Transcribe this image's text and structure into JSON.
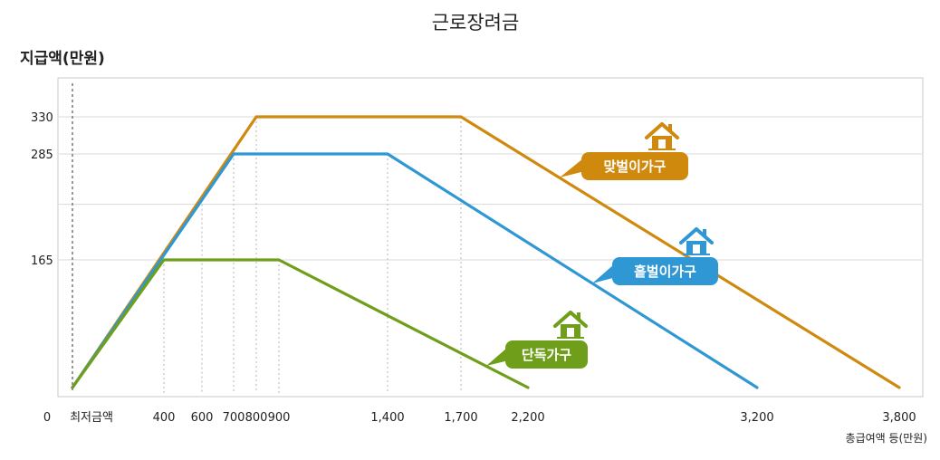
{
  "chart_data": {
    "type": "line",
    "title": "근로장려금",
    "ylabel": "지급액(만원)",
    "xlabel": "총급여액 등(만원)",
    "origin_label": "0",
    "min_wage_label": "최저금액",
    "x_ticks": [
      {
        "value": 400,
        "label": "400"
      },
      {
        "value": 600,
        "label": "600"
      },
      {
        "value": 700,
        "label": "700"
      },
      {
        "value": 800,
        "label": "800"
      },
      {
        "value": 900,
        "label": "900"
      },
      {
        "value": 1400,
        "label": "1,400"
      },
      {
        "value": 1700,
        "label": "1,700"
      },
      {
        "value": 2200,
        "label": "2,200"
      },
      {
        "value": 3200,
        "label": "3,200"
      },
      {
        "value": 3800,
        "label": "3,800"
      }
    ],
    "y_ticks": [
      {
        "value": 165,
        "label": "165"
      },
      {
        "value": 285,
        "label": "285"
      },
      {
        "value": 330,
        "label": "330"
      }
    ],
    "y_gridlines": [
      165,
      228,
      285,
      330
    ],
    "xlim": [
      0,
      3800
    ],
    "ylim": [
      0,
      330
    ],
    "series": [
      {
        "name": "맞벌이가구",
        "color": "#cf8a0e",
        "x": [
          0,
          800,
          1700,
          3800
        ],
        "y": [
          0,
          330,
          330,
          0
        ]
      },
      {
        "name": "홑벌이가구",
        "color": "#2f97d4",
        "x": [
          0,
          700,
          1400,
          3200
        ],
        "y": [
          0,
          285,
          285,
          0
        ]
      },
      {
        "name": "단독가구",
        "color": "#6f9f1a",
        "x": [
          0,
          400,
          900,
          2200
        ],
        "y": [
          0,
          165,
          165,
          0
        ]
      }
    ],
    "legend_placement": "inline-callouts",
    "grid": true
  }
}
